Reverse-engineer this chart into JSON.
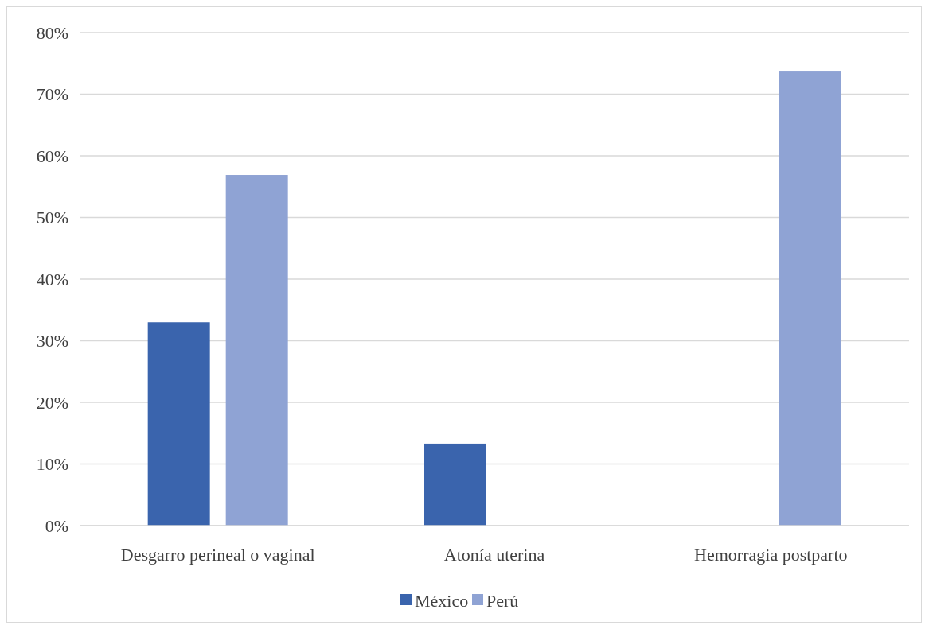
{
  "chart_data": {
    "type": "bar",
    "categories": [
      "Desgarro perineal o vaginal",
      "Atonía uterina",
      "Hemorragia postparto"
    ],
    "series": [
      {
        "name": "México",
        "color": "#3a64ad",
        "values": [
          33,
          13.3,
          null
        ]
      },
      {
        "name": "Perú",
        "color": "#8fa3d4",
        "values": [
          56.9,
          null,
          73.8
        ]
      }
    ],
    "ylim": [
      0,
      80
    ],
    "yticks": [
      {
        "value": 0,
        "label": "0%"
      },
      {
        "value": 10,
        "label": "10%"
      },
      {
        "value": 20,
        "label": "20%"
      },
      {
        "value": 30,
        "label": "30%"
      },
      {
        "value": 40,
        "label": "40%"
      },
      {
        "value": 50,
        "label": "50%"
      },
      {
        "value": 60,
        "label": "60%"
      },
      {
        "value": 70,
        "label": "70%"
      },
      {
        "value": 80,
        "label": "80%"
      }
    ],
    "grid": "y",
    "legend": "bottom"
  }
}
